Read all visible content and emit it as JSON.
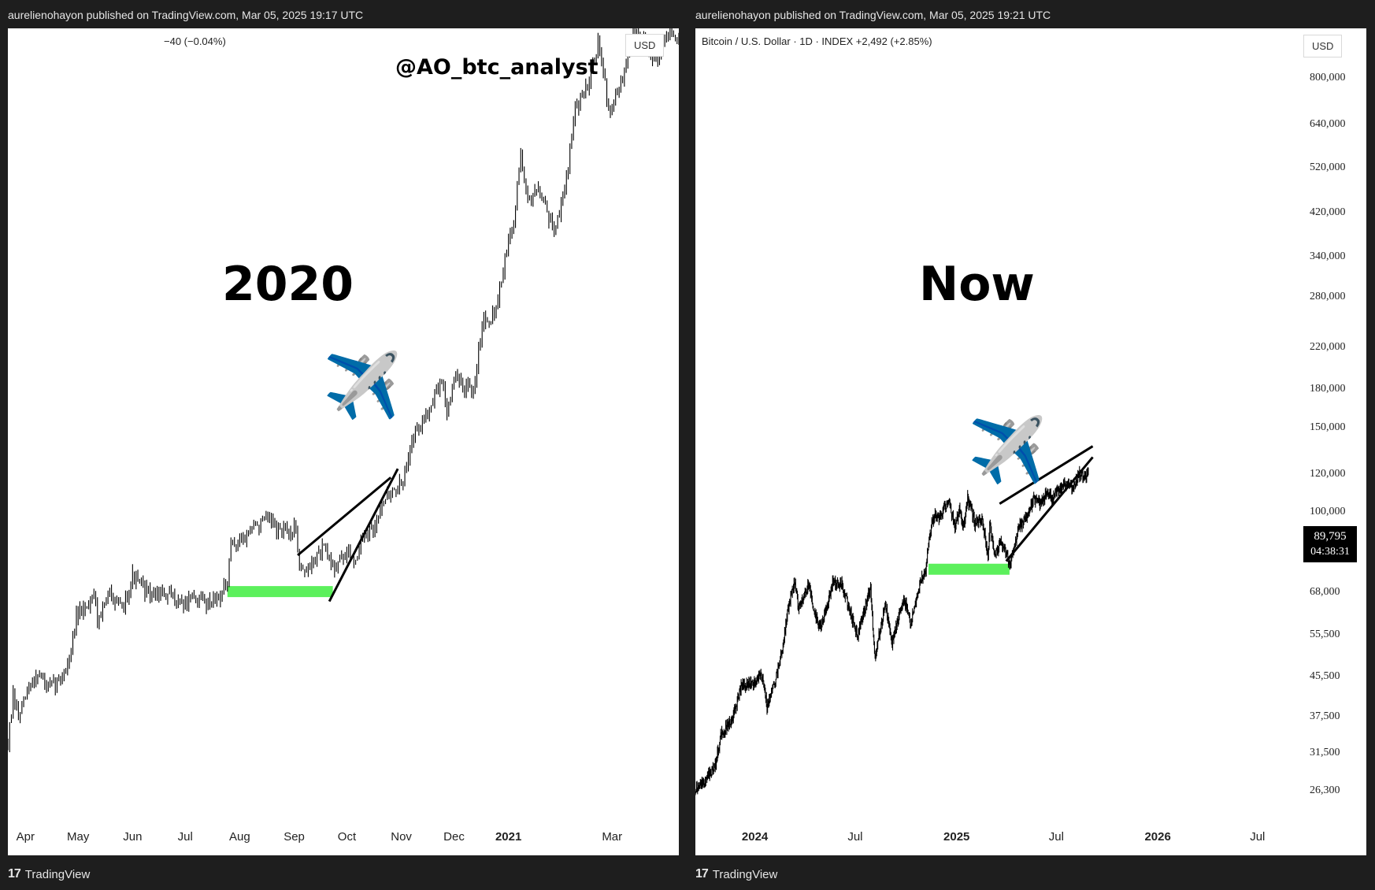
{
  "header": {
    "left_publisher": "aurelienohayon published on TradingView.com, Mar 05, 2025 19:17 UTC",
    "right_publisher": "aurelienohayon published on TradingView.com, Mar 05, 2025 19:21 UTC"
  },
  "footer": {
    "logo_glyph": "17",
    "brand": "TradingView"
  },
  "left_panel": {
    "legend_change": "−40 (−0.04%)",
    "currency_button": "USD",
    "watermark": "@AO_btc_analyst",
    "label": "2020",
    "plane_emoji": "✈️"
  },
  "right_panel": {
    "legend": "Bitcoin / U.S. Dollar · 1D · INDEX  +2,492 (+2.85%)",
    "currency_button": "USD",
    "label": "Now",
    "plane_emoji": "✈️",
    "last_price": "89,795",
    "countdown": "04:38:31"
  },
  "colors": {
    "candles": "#000000",
    "support_zone": "#5cf05c",
    "background": "#ffffff",
    "frame": "#1e1e1e"
  },
  "chart_data": [
    {
      "type": "line",
      "panel": "left",
      "x_ticks": [
        {
          "label": "Apr",
          "bold": false
        },
        {
          "label": "May",
          "bold": false
        },
        {
          "label": "Jun",
          "bold": false
        },
        {
          "label": "Jul",
          "bold": false
        },
        {
          "label": "Aug",
          "bold": false
        },
        {
          "label": "Sep",
          "bold": false
        },
        {
          "label": "Oct",
          "bold": false
        },
        {
          "label": "Nov",
          "bold": false
        },
        {
          "label": "Dec",
          "bold": false
        },
        {
          "label": "2021",
          "bold": true
        },
        {
          "label": "Mar",
          "bold": false
        }
      ],
      "x_start": "2020-03-22",
      "x_end": "2021-04-08",
      "y_log_range": [
        4800,
        60000
      ],
      "price_path": [
        [
          "2020-03-22",
          5800
        ],
        [
          "2020-03-25",
          6700
        ],
        [
          "2020-03-28",
          6300
        ],
        [
          "2020-04-02",
          6800
        ],
        [
          "2020-04-08",
          7300
        ],
        [
          "2020-04-14",
          6900
        ],
        [
          "2020-04-20",
          7100
        ],
        [
          "2020-04-26",
          7600
        ],
        [
          "2020-04-30",
          8700
        ],
        [
          "2020-05-05",
          9000
        ],
        [
          "2020-05-10",
          9500
        ],
        [
          "2020-05-12",
          8700
        ],
        [
          "2020-05-20",
          9500
        ],
        [
          "2020-05-26",
          8900
        ],
        [
          "2020-06-01",
          10000
        ],
        [
          "2020-06-05",
          9700
        ],
        [
          "2020-06-12",
          9400
        ],
        [
          "2020-06-18",
          9400
        ],
        [
          "2020-06-24",
          9300
        ],
        [
          "2020-06-30",
          9150
        ],
        [
          "2020-07-06",
          9250
        ],
        [
          "2020-07-14",
          9200
        ],
        [
          "2020-07-21",
          9400
        ],
        [
          "2020-07-25",
          9700
        ],
        [
          "2020-07-27",
          11000
        ],
        [
          "2020-08-02",
          11300
        ],
        [
          "2020-08-10",
          11800
        ],
        [
          "2020-08-17",
          12000
        ],
        [
          "2020-08-22",
          11700
        ],
        [
          "2020-08-28",
          11500
        ],
        [
          "2020-09-02",
          11700
        ],
        [
          "2020-09-04",
          10400
        ],
        [
          "2020-09-08",
          10100
        ],
        [
          "2020-09-14",
          10700
        ],
        [
          "2020-09-18",
          10900
        ],
        [
          "2020-09-23",
          10300
        ],
        [
          "2020-09-30",
          10700
        ],
        [
          "2020-10-06",
          10600
        ],
        [
          "2020-10-10",
          11300
        ],
        [
          "2020-10-16",
          11500
        ],
        [
          "2020-10-21",
          12900
        ],
        [
          "2020-10-26",
          13100
        ],
        [
          "2020-11-02",
          13500
        ],
        [
          "2020-11-06",
          15500
        ],
        [
          "2020-11-12",
          16300
        ],
        [
          "2020-11-18",
          17700
        ],
        [
          "2020-11-24",
          19000
        ],
        [
          "2020-11-27",
          17100
        ],
        [
          "2020-12-01",
          19100
        ],
        [
          "2020-12-08",
          18500
        ],
        [
          "2020-12-12",
          18000
        ],
        [
          "2020-12-17",
          23000
        ],
        [
          "2020-12-24",
          23600
        ],
        [
          "2020-12-31",
          29000
        ],
        [
          "2021-01-04",
          32000
        ],
        [
          "2021-01-08",
          40000
        ],
        [
          "2021-01-12",
          34000
        ],
        [
          "2021-01-18",
          36000
        ],
        [
          "2021-01-24",
          32500
        ],
        [
          "2021-01-28",
          31000
        ],
        [
          "2021-02-03",
          37000
        ],
        [
          "2021-02-08",
          46000
        ],
        [
          "2021-02-14",
          49000
        ],
        [
          "2021-02-21",
          57000
        ],
        [
          "2021-02-28",
          45500
        ],
        [
          "2021-03-05",
          49000
        ],
        [
          "2021-03-13",
          60000
        ],
        [
          "2021-03-19",
          58000
        ],
        [
          "2021-03-25",
          53000
        ],
        [
          "2021-04-01",
          59000
        ],
        [
          "2021-04-08",
          58000
        ]
      ],
      "support_zone": {
        "x_from": "2020-07-25",
        "x_to": "2020-09-23",
        "price": 9500
      },
      "pattern_lines": [
        [
          [
            "2020-09-03",
            10700
          ],
          [
            "2020-10-26",
            13800
          ]
        ],
        [
          [
            "2020-09-21",
            9200
          ],
          [
            "2020-10-30",
            14200
          ]
        ]
      ]
    },
    {
      "type": "line",
      "panel": "right",
      "y_scale": "log",
      "y_ticks": [
        800000,
        640000,
        520000,
        420000,
        340000,
        280000,
        220000,
        180000,
        150000,
        120000,
        100000,
        68000,
        55500,
        45500,
        37500,
        31500,
        26300
      ],
      "y_tick_labels": [
        "800,000",
        "640,000",
        "520,000",
        "420,000",
        "340,000",
        "280,000",
        "220,000",
        "180,000",
        "150,000",
        "120,000",
        "100,000",
        "68,000",
        "55,500",
        "45,500",
        "37,500",
        "31,500",
        "26,300"
      ],
      "x_ticks": [
        {
          "label": "2024",
          "bold": true
        },
        {
          "label": "Jul",
          "bold": false
        },
        {
          "label": "2025",
          "bold": true
        },
        {
          "label": "Jul",
          "bold": false
        },
        {
          "label": "2026",
          "bold": true
        },
        {
          "label": "Jul",
          "bold": false
        }
      ],
      "x_start": "2023-09-15",
      "x_end": "2026-09-05",
      "price_path": [
        [
          "2023-09-15",
          26500
        ],
        [
          "2023-10-05",
          27800
        ],
        [
          "2023-10-20",
          29500
        ],
        [
          "2023-11-01",
          34500
        ],
        [
          "2023-11-20",
          37000
        ],
        [
          "2023-12-08",
          43500
        ],
        [
          "2024-01-01",
          44200
        ],
        [
          "2024-01-12",
          46500
        ],
        [
          "2024-01-23",
          39500
        ],
        [
          "2024-02-08",
          45000
        ],
        [
          "2024-02-20",
          52000
        ],
        [
          "2024-02-28",
          61000
        ],
        [
          "2024-03-13",
          72000
        ],
        [
          "2024-03-20",
          62500
        ],
        [
          "2024-04-08",
          71000
        ],
        [
          "2024-04-17",
          61500
        ],
        [
          "2024-05-01",
          57500
        ],
        [
          "2024-05-21",
          71000
        ],
        [
          "2024-06-07",
          70500
        ],
        [
          "2024-06-24",
          60500
        ],
        [
          "2024-07-05",
          55000
        ],
        [
          "2024-07-29",
          69500
        ],
        [
          "2024-08-05",
          50000
        ],
        [
          "2024-08-25",
          64000
        ],
        [
          "2024-09-06",
          53500
        ],
        [
          "2024-09-27",
          66000
        ],
        [
          "2024-10-10",
          59000
        ],
        [
          "2024-10-29",
          72500
        ],
        [
          "2024-11-06",
          75500
        ],
        [
          "2024-11-13",
          90000
        ],
        [
          "2024-11-22",
          99000
        ],
        [
          "2024-12-01",
          97000
        ],
        [
          "2024-12-17",
          106000
        ],
        [
          "2024-12-30",
          92500
        ],
        [
          "2025-01-06",
          102000
        ],
        [
          "2025-01-13",
          91500
        ],
        [
          "2025-01-21",
          106500
        ],
        [
          "2025-02-03",
          95000
        ],
        [
          "2025-02-17",
          96000
        ],
        [
          "2025-02-27",
          80500
        ],
        [
          "2025-03-02",
          94000
        ],
        [
          "2025-03-05",
          89795
        ]
      ],
      "projection_path": [
        [
          "2025-03-05",
          89795
        ],
        [
          "2025-03-12",
          81000
        ],
        [
          "2025-03-20",
          86500
        ],
        [
          "2025-04-01",
          82500
        ],
        [
          "2025-04-08",
          77000
        ],
        [
          "2025-04-15",
          84500
        ],
        [
          "2025-04-24",
          93500
        ],
        [
          "2025-05-08",
          97000
        ],
        [
          "2025-05-20",
          106000
        ],
        [
          "2025-06-02",
          104000
        ],
        [
          "2025-06-14",
          110000
        ],
        [
          "2025-06-24",
          106500
        ],
        [
          "2025-07-08",
          112000
        ],
        [
          "2025-07-20",
          115000
        ],
        [
          "2025-07-30",
          111500
        ],
        [
          "2025-08-12",
          121000
        ],
        [
          "2025-08-20",
          117000
        ],
        [
          "2025-08-28",
          122000
        ]
      ],
      "support_zone": {
        "x_from": "2024-11-11",
        "x_to": "2025-04-07",
        "price": 76000
      },
      "pattern_lines": [
        [
          [
            "2025-03-20",
            104000
          ],
          [
            "2025-09-05",
            137000
          ]
        ],
        [
          [
            "2025-04-01",
            79000
          ],
          [
            "2025-09-05",
            130000
          ]
        ]
      ]
    }
  ]
}
